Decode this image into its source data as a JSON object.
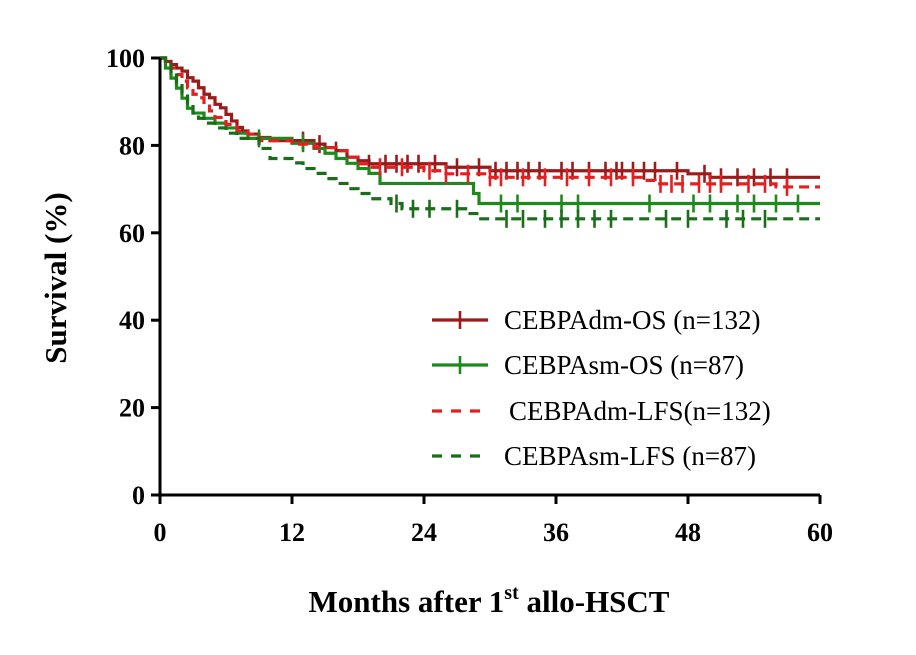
{
  "chart_data": {
    "type": "line",
    "title": "",
    "xlabel": {
      "main": "Months after 1",
      "sup": "st",
      "rest": " allo-HSCT"
    },
    "ylabel": "Survival (%)",
    "xlim": [
      0,
      60
    ],
    "ylim": [
      0,
      100
    ],
    "xticks": [
      "0",
      "12",
      "24",
      "36",
      "48",
      "60"
    ],
    "yticks": [
      "0",
      "20",
      "40",
      "60",
      "80",
      "100"
    ],
    "grid": false,
    "legend_position": "lower-right",
    "series": [
      {
        "name": "CEBPAdm-OS (n=132)",
        "color": "#9b1b1b",
        "style": "solid",
        "points": [
          [
            0,
            100
          ],
          [
            0.5,
            99.2
          ],
          [
            1,
            98.5
          ],
          [
            1.5,
            97.7
          ],
          [
            2,
            97
          ],
          [
            2.5,
            95.5
          ],
          [
            3,
            94.7
          ],
          [
            3.5,
            93.2
          ],
          [
            4,
            91.7
          ],
          [
            4.5,
            90.9
          ],
          [
            5,
            89.4
          ],
          [
            5.5,
            88.6
          ],
          [
            6,
            87.1
          ],
          [
            6.5,
            85.6
          ],
          [
            7,
            84.1
          ],
          [
            7.5,
            83.3
          ],
          [
            8,
            82.6
          ],
          [
            9,
            81.8
          ],
          [
            10,
            81.1
          ],
          [
            12,
            81.1
          ],
          [
            14,
            80.3
          ],
          [
            15,
            79.5
          ],
          [
            16,
            78.8
          ],
          [
            17,
            77.3
          ],
          [
            18,
            76.5
          ],
          [
            19,
            75.8
          ],
          [
            20,
            75.8
          ],
          [
            24,
            75.8
          ],
          [
            26,
            75
          ],
          [
            28,
            75
          ],
          [
            30,
            74.2
          ],
          [
            36,
            74.2
          ],
          [
            48,
            73.5
          ],
          [
            50,
            72.7
          ],
          [
            60,
            72.7
          ]
        ],
        "censors": [
          13,
          14.5,
          16,
          19,
          20.5,
          21.5,
          22.5,
          23.5,
          25,
          27,
          29,
          30.5,
          31.5,
          32.5,
          33.5,
          34.5,
          36.5,
          37.5,
          39,
          40.5,
          41.5,
          42,
          43,
          44,
          45,
          47,
          49.5,
          51,
          52.5,
          54,
          55.5,
          57
        ]
      },
      {
        "name": "CEBPAsm-OS (n=87)",
        "color": "#1e8a1e",
        "style": "solid",
        "points": [
          [
            0,
            100
          ],
          [
            0.5,
            97.7
          ],
          [
            1,
            95.4
          ],
          [
            1.5,
            93.1
          ],
          [
            2,
            90.8
          ],
          [
            2.5,
            88.5
          ],
          [
            3,
            87.4
          ],
          [
            4,
            86.2
          ],
          [
            5,
            85.1
          ],
          [
            6,
            84
          ],
          [
            7,
            82.8
          ],
          [
            8,
            81.6
          ],
          [
            12,
            80.5
          ],
          [
            14,
            79.3
          ],
          [
            15,
            78.2
          ],
          [
            16,
            77
          ],
          [
            17,
            75.9
          ],
          [
            18,
            74.7
          ],
          [
            19,
            73.6
          ],
          [
            20,
            71.3
          ],
          [
            28,
            71.3
          ],
          [
            28.5,
            69
          ],
          [
            29,
            66.7
          ],
          [
            60,
            66.7
          ]
        ],
        "censors": [
          9,
          13,
          31,
          32.5,
          36.5,
          38,
          44.5,
          48.5,
          50,
          52.5,
          54,
          56,
          58
        ]
      },
      {
        "name": "CEBPAdm-LFS(n=132)",
        "color": "#e51f1f",
        "style": "dashed",
        "points": [
          [
            0,
            100
          ],
          [
            0.5,
            99.2
          ],
          [
            1,
            97.7
          ],
          [
            1.5,
            96.2
          ],
          [
            2,
            94.7
          ],
          [
            2.5,
            93.2
          ],
          [
            3,
            91.7
          ],
          [
            3.5,
            90.9
          ],
          [
            4,
            89.4
          ],
          [
            4.5,
            87.9
          ],
          [
            5,
            86.4
          ],
          [
            6,
            84.8
          ],
          [
            7,
            83.3
          ],
          [
            8,
            82.6
          ],
          [
            9,
            81.1
          ],
          [
            12,
            80.3
          ],
          [
            14,
            79.5
          ],
          [
            16,
            78.8
          ],
          [
            17,
            77.3
          ],
          [
            18,
            75.8
          ],
          [
            19,
            75
          ],
          [
            24,
            74.2
          ],
          [
            26,
            73.5
          ],
          [
            30,
            72.7
          ],
          [
            36,
            72.7
          ],
          [
            44,
            72
          ],
          [
            45,
            71.2
          ],
          [
            52,
            71.2
          ],
          [
            56,
            70.5
          ],
          [
            60,
            70.5
          ]
        ],
        "censors": [
          20,
          22,
          24.5,
          26,
          28,
          30,
          31,
          33,
          35,
          37,
          39,
          41,
          43,
          45.5,
          46.5,
          47.5,
          49,
          50,
          51,
          53.5,
          55,
          57
        ]
      },
      {
        "name": "CEBPAsm-LFS (n=87)",
        "color": "#1a6e1a",
        "style": "dashed",
        "points": [
          [
            0,
            100
          ],
          [
            0.5,
            98.9
          ],
          [
            1,
            96.6
          ],
          [
            1.5,
            94.3
          ],
          [
            2,
            92
          ],
          [
            2.5,
            89.7
          ],
          [
            3,
            87.4
          ],
          [
            3.5,
            86.2
          ],
          [
            4,
            85.1
          ],
          [
            5,
            84
          ],
          [
            6,
            82.8
          ],
          [
            7,
            81.6
          ],
          [
            9,
            79.3
          ],
          [
            10,
            77
          ],
          [
            12,
            76
          ],
          [
            13,
            74.7
          ],
          [
            14,
            73.6
          ],
          [
            15,
            72.4
          ],
          [
            16,
            71.3
          ],
          [
            17,
            70.1
          ],
          [
            18,
            69
          ],
          [
            19,
            67.8
          ],
          [
            20,
            67.8
          ],
          [
            21,
            66.7
          ],
          [
            22,
            65.5
          ],
          [
            24,
            65.5
          ],
          [
            26,
            65.5
          ],
          [
            28,
            64.4
          ],
          [
            29,
            63.2
          ],
          [
            60,
            63.2
          ]
        ],
        "censors": [
          21.5,
          23,
          24.5,
          27,
          31.5,
          33,
          35,
          36.5,
          38,
          39.5,
          41,
          46,
          48,
          51.5,
          53,
          55
        ]
      }
    ]
  }
}
